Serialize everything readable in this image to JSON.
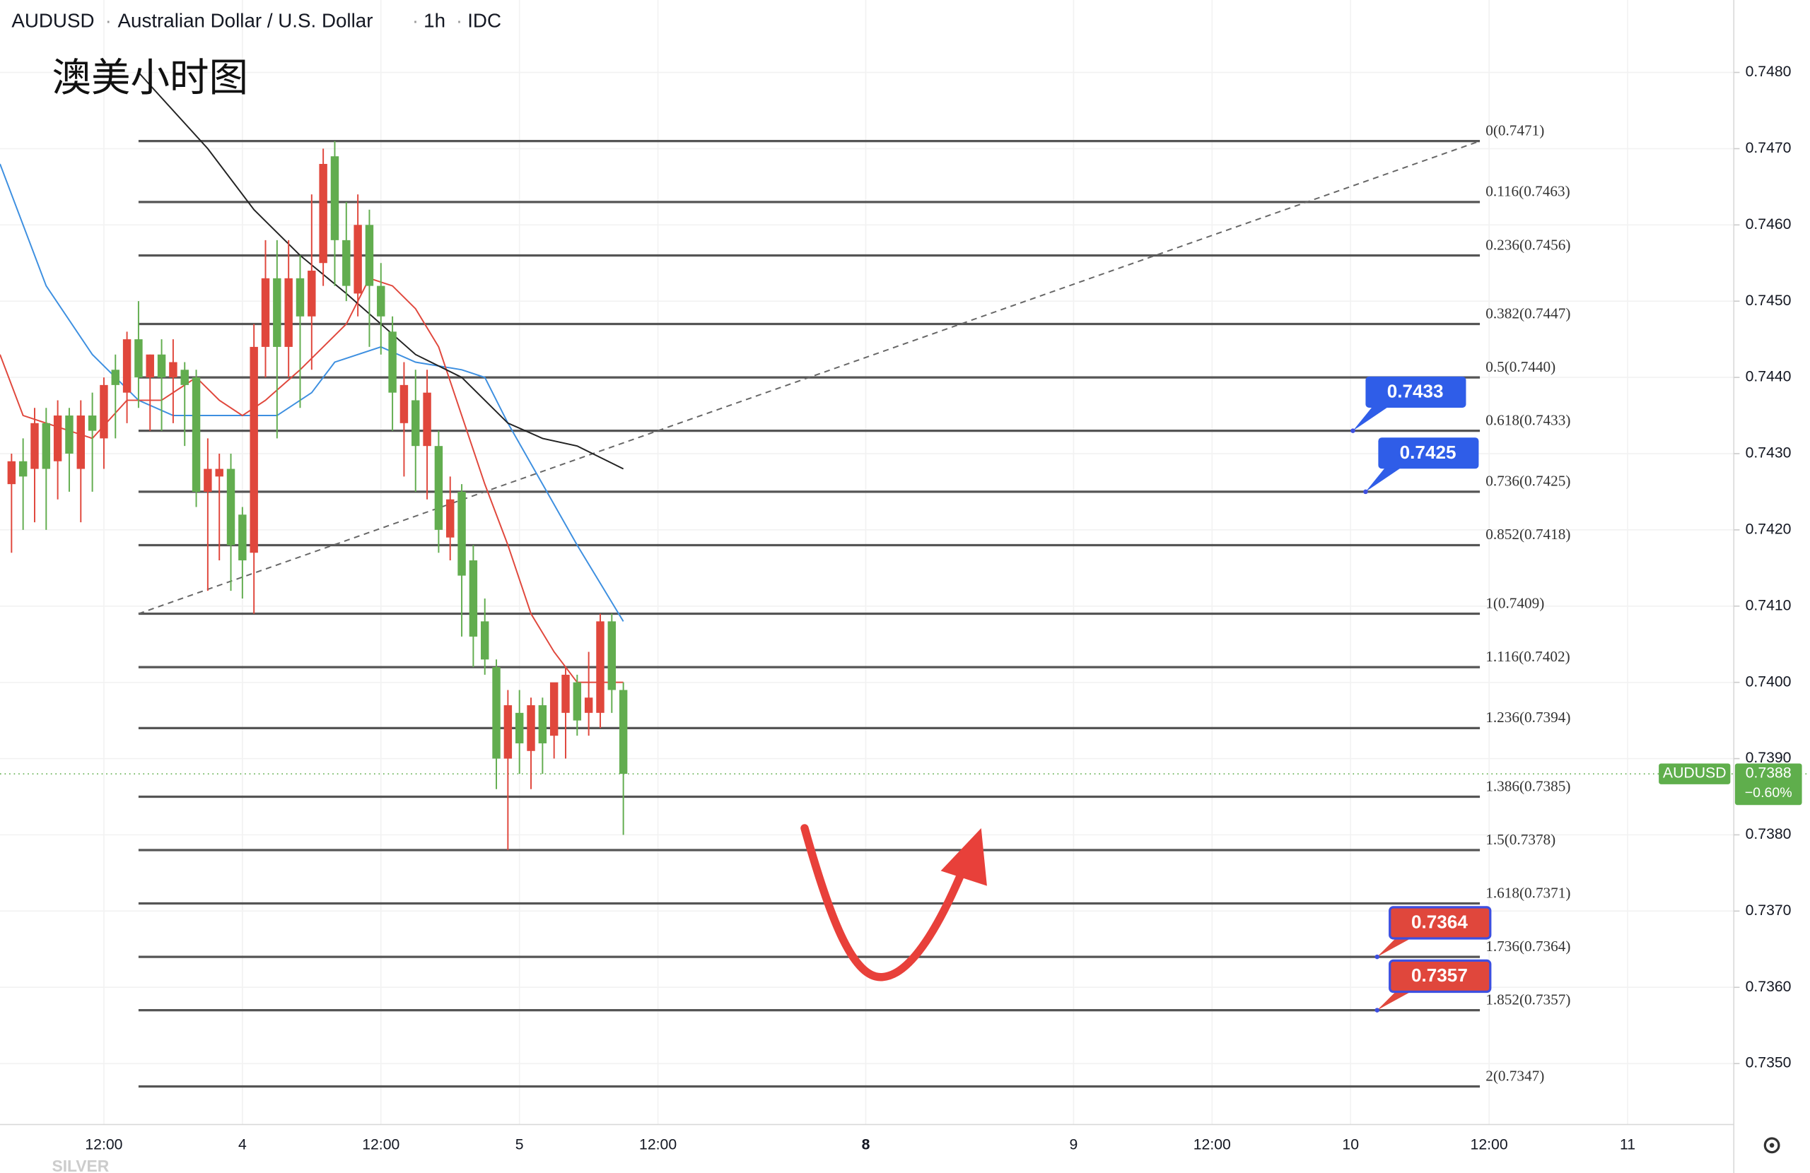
{
  "chart_data": {
    "type": "candlestick",
    "symbol": "AUDUSD",
    "description": "Australian Dollar / U.S. Dollar",
    "interval": "1h",
    "source": "IDC",
    "title": "澳美小时图",
    "watermark": "SILVER",
    "up_color": "#e0473c",
    "down_color": "#62ad4f",
    "xlim": [
      0,
      150
    ],
    "xticks": [
      {
        "value": 9,
        "label": "12:00"
      },
      {
        "value": 21,
        "label": "4"
      },
      {
        "value": 33,
        "label": "12:00"
      },
      {
        "value": 45,
        "label": "5"
      },
      {
        "value": 57,
        "label": "12:00"
      },
      {
        "value": 75,
        "label": "8"
      },
      {
        "value": 93,
        "label": "9"
      },
      {
        "value": 105,
        "label": "12:00"
      },
      {
        "value": 117,
        "label": "10"
      },
      {
        "value": 129,
        "label": "12:00"
      },
      {
        "value": 141,
        "label": "11"
      }
    ],
    "ylim": [
      0.7342,
      0.74895
    ],
    "yticks": [
      {
        "value": 0.748,
        "label": "0.7480"
      },
      {
        "value": 0.747,
        "label": "0.7470"
      },
      {
        "value": 0.746,
        "label": "0.7460"
      },
      {
        "value": 0.745,
        "label": "0.7450"
      },
      {
        "value": 0.744,
        "label": "0.7440"
      },
      {
        "value": 0.743,
        "label": "0.7430"
      },
      {
        "value": 0.742,
        "label": "0.7420"
      },
      {
        "value": 0.741,
        "label": "0.7410"
      },
      {
        "value": 0.74,
        "label": "0.7400"
      },
      {
        "value": 0.739,
        "label": "0.7390"
      },
      {
        "value": 0.738,
        "label": "0.7380"
      },
      {
        "value": 0.737,
        "label": "0.7370"
      },
      {
        "value": 0.736,
        "label": "0.7360"
      },
      {
        "value": 0.735,
        "label": "0.7350"
      }
    ],
    "ohlc": [
      [
        0.7426,
        0.743,
        0.7417,
        0.7429
      ],
      [
        0.7429,
        0.7432,
        0.742,
        0.7427
      ],
      [
        0.7428,
        0.7436,
        0.7421,
        0.7434
      ],
      [
        0.7434,
        0.7436,
        0.742,
        0.7428
      ],
      [
        0.7429,
        0.7437,
        0.7424,
        0.7435
      ],
      [
        0.7435,
        0.7436,
        0.7425,
        0.743
      ],
      [
        0.7428,
        0.7437,
        0.7421,
        0.7435
      ],
      [
        0.7435,
        0.7438,
        0.7425,
        0.7433
      ],
      [
        0.7432,
        0.744,
        0.7428,
        0.7439
      ],
      [
        0.7441,
        0.7443,
        0.7432,
        0.7439
      ],
      [
        0.7438,
        0.7446,
        0.7434,
        0.7445
      ],
      [
        0.7445,
        0.745,
        0.7436,
        0.744
      ],
      [
        0.744,
        0.7443,
        0.7433,
        0.7443
      ],
      [
        0.7443,
        0.7445,
        0.7433,
        0.744
      ],
      [
        0.744,
        0.7445,
        0.7434,
        0.7442
      ],
      [
        0.7441,
        0.7442,
        0.7431,
        0.7439
      ],
      [
        0.744,
        0.7441,
        0.7423,
        0.7425
      ],
      [
        0.7425,
        0.7432,
        0.7412,
        0.7428
      ],
      [
        0.7427,
        0.743,
        0.7416,
        0.7428
      ],
      [
        0.7428,
        0.743,
        0.7412,
        0.7418
      ],
      [
        0.7422,
        0.7423,
        0.7411,
        0.7416
      ],
      [
        0.7417,
        0.7447,
        0.7409,
        0.7444
      ],
      [
        0.7444,
        0.7458,
        0.744,
        0.7453
      ],
      [
        0.7453,
        0.7458,
        0.7432,
        0.7444
      ],
      [
        0.7444,
        0.7458,
        0.744,
        0.7453
      ],
      [
        0.7453,
        0.7456,
        0.7436,
        0.7448
      ],
      [
        0.7448,
        0.7464,
        0.7441,
        0.7454
      ],
      [
        0.7455,
        0.747,
        0.7452,
        0.7468
      ],
      [
        0.7469,
        0.7471,
        0.7452,
        0.7458
      ],
      [
        0.7458,
        0.7463,
        0.745,
        0.7452
      ],
      [
        0.7451,
        0.7464,
        0.7448,
        0.746
      ],
      [
        0.746,
        0.7462,
        0.7444,
        0.7452
      ],
      [
        0.7452,
        0.7455,
        0.7443,
        0.7448
      ],
      [
        0.7446,
        0.7448,
        0.7433,
        0.7438
      ],
      [
        0.7434,
        0.7442,
        0.7427,
        0.7439
      ],
      [
        0.7437,
        0.7441,
        0.7425,
        0.7431
      ],
      [
        0.7431,
        0.7441,
        0.7424,
        0.7438
      ],
      [
        0.7431,
        0.7433,
        0.7417,
        0.742
      ],
      [
        0.7419,
        0.7427,
        0.7416,
        0.7424
      ],
      [
        0.7425,
        0.7426,
        0.7406,
        0.7414
      ],
      [
        0.7416,
        0.7418,
        0.7402,
        0.7406
      ],
      [
        0.7408,
        0.7411,
        0.7401,
        0.7403
      ],
      [
        0.7402,
        0.7403,
        0.7386,
        0.739
      ],
      [
        0.739,
        0.7399,
        0.7378,
        0.7397
      ],
      [
        0.7396,
        0.7399,
        0.7388,
        0.7392
      ],
      [
        0.7391,
        0.7398,
        0.7386,
        0.7397
      ],
      [
        0.7397,
        0.7398,
        0.7388,
        0.7392
      ],
      [
        0.7393,
        0.7399,
        0.739,
        0.74
      ],
      [
        0.7396,
        0.7402,
        0.739,
        0.7401
      ],
      [
        0.74,
        0.7401,
        0.7393,
        0.7395
      ],
      [
        0.7396,
        0.7404,
        0.7393,
        0.7398
      ],
      [
        0.7396,
        0.7409,
        0.7394,
        0.7408
      ],
      [
        0.7408,
        0.7409,
        0.7396,
        0.7399
      ],
      [
        0.7399,
        0.74,
        0.738,
        0.7388
      ]
    ],
    "ma_lines": [
      {
        "color": "#3d8fe0",
        "x": [
          0,
          4,
          8,
          12,
          15,
          20,
          24,
          27,
          29,
          31,
          33,
          36,
          40,
          42,
          44,
          47,
          50,
          52,
          54
        ],
        "values": [
          0.7468,
          0.7452,
          0.7443,
          0.7437,
          0.7435,
          0.7435,
          0.7435,
          0.7438,
          0.7442,
          0.7443,
          0.7444,
          0.7442,
          0.7441,
          0.744,
          0.7434,
          0.7426,
          0.7418,
          0.7413,
          0.7408
        ]
      },
      {
        "color": "#e0473c",
        "x": [
          0,
          2,
          4,
          8,
          11,
          14,
          17,
          19,
          21,
          23,
          26,
          28,
          30,
          32,
          34,
          36,
          38,
          40,
          42,
          44,
          46,
          48,
          50,
          52,
          54
        ],
        "values": [
          0.7443,
          0.7435,
          0.7434,
          0.7432,
          0.7437,
          0.7437,
          0.744,
          0.7437,
          0.7435,
          0.7437,
          0.7441,
          0.7444,
          0.7447,
          0.7453,
          0.7452,
          0.7449,
          0.7444,
          0.7435,
          0.7426,
          0.7418,
          0.7409,
          0.7404,
          0.74,
          0.74,
          0.74
        ]
      },
      {
        "color": "#222222",
        "x": [
          12,
          18,
          22,
          26,
          30,
          33,
          36,
          40,
          44,
          47,
          50,
          54
        ],
        "values": [
          0.748,
          0.747,
          0.7462,
          0.7456,
          0.7451,
          0.7447,
          0.7443,
          0.744,
          0.7434,
          0.7432,
          0.7431,
          0.7428
        ]
      }
    ],
    "fib_levels": [
      {
        "label": "0(0.7471)",
        "value": 0.7471
      },
      {
        "label": "0.116(0.7463)",
        "value": 0.7463
      },
      {
        "label": "0.236(0.7456)",
        "value": 0.7456
      },
      {
        "label": "0.382(0.7447)",
        "value": 0.7447
      },
      {
        "label": "0.5(0.7440)",
        "value": 0.744
      },
      {
        "label": "0.618(0.7433)",
        "value": 0.7433
      },
      {
        "label": "0.736(0.7425)",
        "value": 0.7425
      },
      {
        "label": "0.852(0.7418)",
        "value": 0.7418
      },
      {
        "label": "1(0.7409)",
        "value": 0.7409
      },
      {
        "label": "1.116(0.7402)",
        "value": 0.7402
      },
      {
        "label": "1.236(0.7394)",
        "value": 0.7394
      },
      {
        "label": "1.386(0.7385)",
        "value": 0.7385
      },
      {
        "label": "1.5(0.7378)",
        "value": 0.7378
      },
      {
        "label": "1.618(0.7371)",
        "value": 0.7371
      },
      {
        "label": "1.736(0.7364)",
        "value": 0.7364
      },
      {
        "label": "1.852(0.7357)",
        "value": 0.7357
      },
      {
        "label": "2(0.7347)",
        "value": 0.7347
      }
    ],
    "price_labels": [
      {
        "value": 0.7433,
        "color": "#2f5de8"
      },
      {
        "value": 0.7425,
        "color": "#2f5de8"
      },
      {
        "value": 0.7364,
        "color": "#e0473c"
      },
      {
        "value": 0.7357,
        "color": "#e0473c"
      }
    ],
    "last_price": {
      "name": "AUDUSD",
      "value": 0.7388,
      "change": {
        "value": -0.6,
        "label": "−0.60%"
      },
      "color": "#5fae4c"
    }
  }
}
